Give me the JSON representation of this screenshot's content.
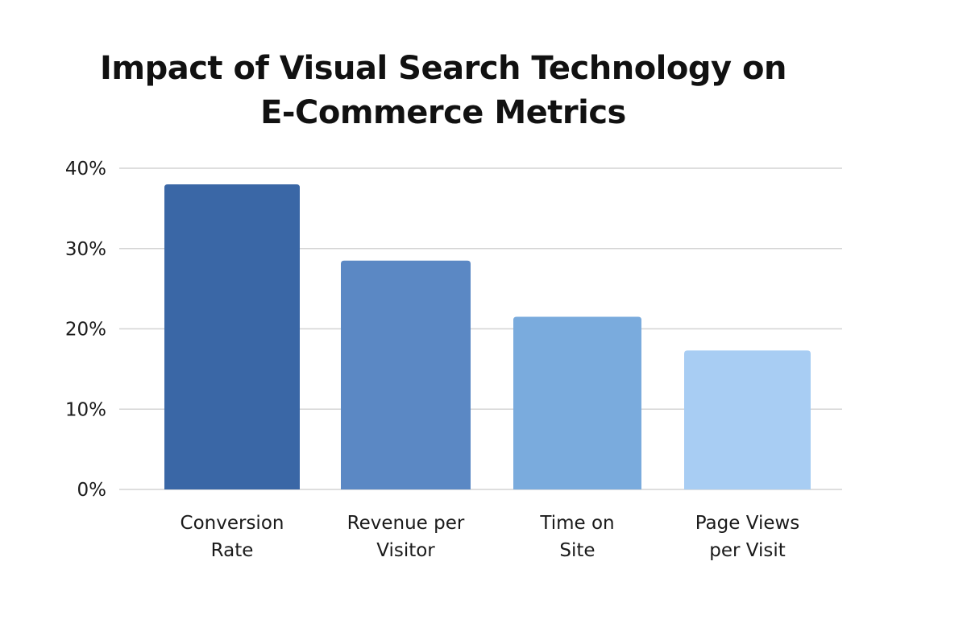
{
  "chart_data": {
    "type": "bar",
    "title_lines": [
      "Impact of Visual Search Technology on",
      "E-Commerce Metrics"
    ],
    "categories": [
      [
        "Conversion",
        "Rate"
      ],
      [
        "Revenue per",
        "Visitor"
      ],
      [
        "Time on",
        "Site"
      ],
      [
        "Page Views",
        "per Visit"
      ]
    ],
    "values": [
      38,
      28.5,
      21.5,
      17.3
    ],
    "value_unit": "%",
    "ylim": [
      0,
      40
    ],
    "yticks": [
      0,
      10,
      20,
      30,
      40
    ],
    "ytick_labels": [
      "0%",
      "10%",
      "20%",
      "30%",
      "40%"
    ],
    "grid": true,
    "bar_colors": [
      "#3a67a6",
      "#5b88c4",
      "#7aabdd",
      "#a8cdf3"
    ],
    "grid_color": "#d4d4d4"
  }
}
